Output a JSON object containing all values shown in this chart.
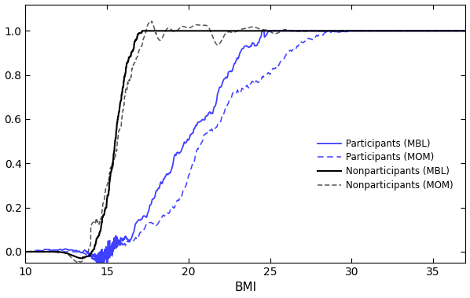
{
  "xlabel": "BMI",
  "xlim": [
    10,
    37
  ],
  "ylim": [
    -0.05,
    1.12
  ],
  "yticks": [
    0.0,
    0.2,
    0.4,
    0.6,
    0.8,
    1.0
  ],
  "xticks": [
    10,
    15,
    20,
    25,
    30,
    35
  ],
  "legend_entries": [
    "Participants (MBL)",
    "Participants (MOM)",
    "Nonparticipants (MBL)",
    "Nonparticipants (MOM)"
  ],
  "line_colors_blue": "#4040FF",
  "line_color_black": "#000000",
  "line_color_gray": "#555555",
  "figsize": [
    5.98,
    3.8
  ],
  "dpi": 100
}
